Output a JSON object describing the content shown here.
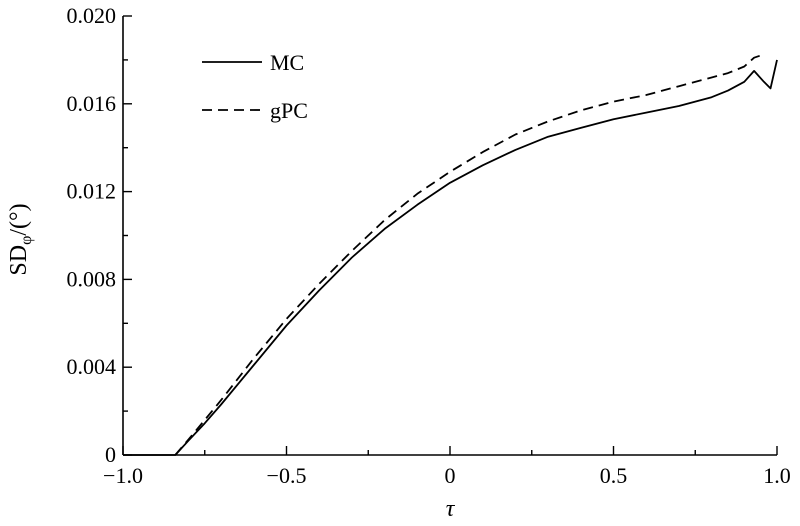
{
  "chart_data": {
    "type": "line",
    "title": "",
    "xlabel": "τ",
    "ylabel": {
      "main": "SD",
      "subscript": "φ",
      "unit": "/(°)"
    },
    "xlim": [
      -1.0,
      1.0
    ],
    "ylim": [
      0,
      0.02
    ],
    "x_ticks": [
      {
        "value": -1.0,
        "label": "−1.0"
      },
      {
        "value": -0.5,
        "label": "−0.5"
      },
      {
        "value": 0,
        "label": "0"
      },
      {
        "value": 0.5,
        "label": "0.5"
      },
      {
        "value": 1.0,
        "label": "1.0"
      }
    ],
    "y_ticks": [
      {
        "value": 0,
        "label": "0"
      },
      {
        "value": 0.004,
        "label": "0.004"
      },
      {
        "value": 0.008,
        "label": "0.008"
      },
      {
        "value": 0.012,
        "label": "0.012"
      },
      {
        "value": 0.016,
        "label": "0.016"
      },
      {
        "value": 0.02,
        "label": "0.020"
      }
    ],
    "grid": false,
    "legend_position": "top-left",
    "series": [
      {
        "name": "MC",
        "style": "solid",
        "color": "#000000",
        "x": [
          -1.0,
          -0.9,
          -0.84,
          -0.8,
          -0.75,
          -0.7,
          -0.6,
          -0.5,
          -0.4,
          -0.3,
          -0.2,
          -0.1,
          0.0,
          0.1,
          0.2,
          0.3,
          0.4,
          0.5,
          0.6,
          0.7,
          0.8,
          0.85,
          0.9,
          0.93,
          0.96,
          0.98,
          1.0
        ],
        "y": [
          0,
          0,
          0,
          0.00065,
          0.00145,
          0.0023,
          0.0041,
          0.0059,
          0.0075,
          0.009,
          0.0103,
          0.0114,
          0.0124,
          0.0132,
          0.0139,
          0.0145,
          0.0149,
          0.0153,
          0.0156,
          0.0159,
          0.0163,
          0.0166,
          0.017,
          0.0175,
          0.017,
          0.0167,
          0.018
        ]
      },
      {
        "name": "gPC",
        "style": "dashed",
        "color": "#000000",
        "x": [
          -0.84,
          -0.8,
          -0.75,
          -0.7,
          -0.6,
          -0.5,
          -0.4,
          -0.3,
          -0.2,
          -0.1,
          0.0,
          0.1,
          0.2,
          0.3,
          0.4,
          0.5,
          0.6,
          0.7,
          0.8,
          0.85,
          0.9,
          0.93,
          0.95
        ],
        "y": [
          0,
          0.0007,
          0.0016,
          0.0025,
          0.0044,
          0.0062,
          0.0078,
          0.0093,
          0.0107,
          0.0119,
          0.0129,
          0.0138,
          0.0146,
          0.0152,
          0.0157,
          0.0161,
          0.0164,
          0.0168,
          0.0172,
          0.0174,
          0.0177,
          0.0181,
          0.0182
        ]
      }
    ]
  }
}
